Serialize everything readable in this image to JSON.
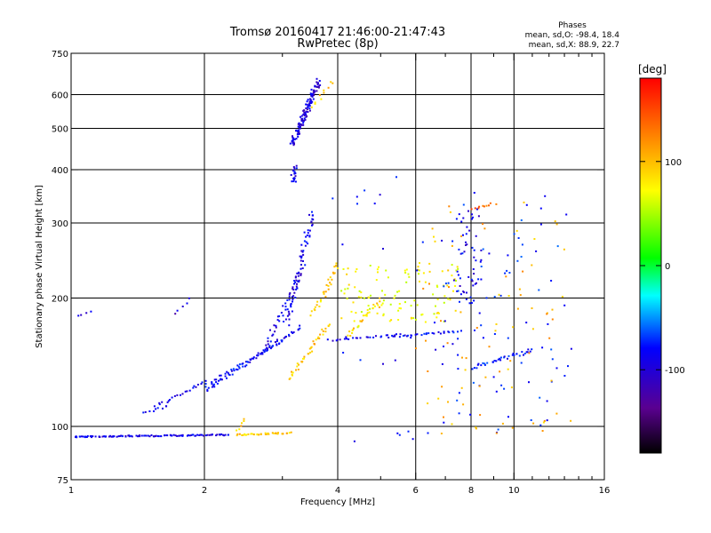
{
  "chart_data": {
    "type": "scatter",
    "title": "Tromsø 20160417 21:46:00-21:47:43",
    "subtitle": "RwPretec (8p)",
    "xlabel": "Frequency [MHz]",
    "ylabel": "Stationary phase Virtual Height [km]",
    "x_scale": "log",
    "y_scale": "log",
    "xlim": [
      1,
      16
    ],
    "ylim": [
      75,
      750
    ],
    "x_ticks": [
      1,
      2,
      4,
      6,
      8,
      10,
      16
    ],
    "x_tick_labels": [
      "1",
      "2",
      "4",
      "6",
      "8",
      "10",
      "16"
    ],
    "x_minor_ticks": [
      3,
      5,
      7,
      9,
      11,
      12,
      13,
      14,
      15
    ],
    "x_grid": [
      2,
      4,
      6,
      8,
      10
    ],
    "y_ticks": [
      75,
      100,
      200,
      300,
      400,
      500,
      600,
      750
    ],
    "y_tick_labels": [
      "75",
      "100",
      "200",
      "300",
      "400",
      "500",
      "600",
      "750"
    ],
    "y_grid": [
      100,
      200,
      300,
      400,
      500,
      600
    ],
    "grid": true,
    "stats_block": {
      "title": "Phases",
      "line1": "mean, sd,O: -98.4, 18.4",
      "line2": "mean, sd,X:  88.9, 22.7"
    },
    "colorbar": {
      "label": "[deg]",
      "range": [
        -180,
        180
      ],
      "ticks": [
        100,
        0,
        -100
      ],
      "tick_labels": [
        "100",
        "0",
        "-100"
      ],
      "colormap": "rainbow (black-purple-blue-cyan-green-yellow-orange-red)"
    },
    "series": [
      {
        "clusters": [
          {
            "x": [
              1.0,
              2.25
            ],
            "y": [
              95,
              96
            ],
            "phase": -110,
            "count": 110,
            "spread": 1.5
          },
          {
            "x": [
              1.02,
              1.1
            ],
            "y": [
              182,
              186
            ],
            "phase": -110,
            "count": 4,
            "spread": 2
          },
          {
            "x": [
              1.45,
              1.65
            ],
            "y": [
              108,
              112
            ],
            "phase": -110,
            "count": 9,
            "spread": 2
          },
          {
            "x": [
              1.55,
              2.0
            ],
            "y": [
              112,
              128
            ],
            "phase": -110,
            "count": 22,
            "spread": 2
          },
          {
            "x": [
              1.7,
              1.85
            ],
            "y": [
              185,
              200
            ],
            "phase": -120,
            "count": 5,
            "spread": 2
          },
          {
            "x": [
              2.0,
              3.3
            ],
            "y": [
              122,
              172
            ],
            "phase": -105,
            "count": 60,
            "spread": 3
          },
          {
            "x": [
              2.0,
              3.0
            ],
            "y": [
              125,
              160
            ],
            "phase": -100,
            "count": 40,
            "spread": 3
          },
          {
            "x": [
              2.7,
              3.3
            ],
            "y": [
              150,
              230
            ],
            "phase": -110,
            "count": 40,
            "spread": 5
          },
          {
            "x": [
              3.05,
              3.5
            ],
            "y": [
              175,
              320
            ],
            "phase": -110,
            "count": 70,
            "spread": 6
          },
          {
            "x": [
              3.15,
              3.2
            ],
            "y": [
              375,
              410
            ],
            "phase": -110,
            "count": 20,
            "spread": 3
          },
          {
            "x": [
              3.15,
              3.6
            ],
            "y": [
              460,
              650
            ],
            "phase": -115,
            "count": 120,
            "spread": 5
          },
          {
            "x": [
              3.5,
              3.9
            ],
            "y": [
              560,
              650
            ],
            "phase": 100,
            "count": 10,
            "spread": 4
          },
          {
            "x": [
              2.35,
              3.1
            ],
            "y": [
              96,
              97
            ],
            "phase": 100,
            "count": 40,
            "spread": 1.5
          },
          {
            "x": [
              2.35,
              2.45
            ],
            "y": [
              98,
              105
            ],
            "phase": 105,
            "count": 6,
            "spread": 2
          },
          {
            "x": [
              3.1,
              3.8
            ],
            "y": [
              130,
              175
            ],
            "phase": 100,
            "count": 40,
            "spread": 3
          },
          {
            "x": [
              3.5,
              4.0
            ],
            "y": [
              185,
              240
            ],
            "phase": 95,
            "count": 30,
            "spread": 5
          },
          {
            "x": [
              3.8,
              5.5
            ],
            "y": [
              160,
              165
            ],
            "phase": -110,
            "count": 25,
            "spread": 2
          },
          {
            "x": [
              4.2,
              5.0
            ],
            "y": [
              165,
              200
            ],
            "phase": 95,
            "count": 30,
            "spread": 6
          },
          {
            "x": [
              4.0,
              7.5
            ],
            "y": [
              175,
              240
            ],
            "phase": 80,
            "count": 110,
            "spread": 10
          },
          {
            "x": [
              5.2,
              7.5
            ],
            "y": [
              163,
              168
            ],
            "phase": -100,
            "count": 30,
            "spread": 2
          },
          {
            "x": [
              7.5,
              8.3
            ],
            "y": [
              190,
              330
            ],
            "phase": -110,
            "count": 45,
            "spread": 8
          },
          {
            "x": [
              8.0,
              11.0
            ],
            "y": [
              138,
              152
            ],
            "phase": -95,
            "count": 35,
            "spread": 4
          },
          {
            "x": [
              7.0,
              13.0
            ],
            "y": [
              100,
              340
            ],
            "phase": -90,
            "count": 80,
            "spread": 20
          },
          {
            "x": [
              6.0,
              13.0
            ],
            "y": [
              95,
              330
            ],
            "phase": 110,
            "count": 80,
            "spread": 20
          },
          {
            "x": [
              8.0,
              9.0
            ],
            "y": [
              325,
              335
            ],
            "phase": 140,
            "count": 10,
            "spread": 2
          },
          {
            "x": [
              4.0,
              8.0
            ],
            "y": [
              90,
              390
            ],
            "phase": -100,
            "count": 35,
            "spread": 20
          }
        ]
      }
    ]
  }
}
